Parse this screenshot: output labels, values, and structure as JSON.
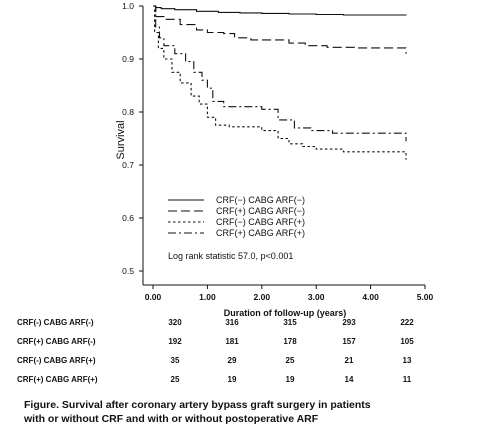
{
  "chart_data": {
    "type": "line",
    "subtype": "kaplan-meier step",
    "ylabel": "Survival",
    "xlabel": "Duration of follow-up (years)",
    "xlim": [
      0,
      5
    ],
    "ylim": [
      0.5,
      1.0
    ],
    "x_ticks": [
      "0.00",
      "1.00",
      "2.00",
      "3.00",
      "4.00",
      "5.00"
    ],
    "y_ticks": [
      "0.5",
      "0.6",
      "0.7",
      "0.8",
      "0.9",
      "1.0"
    ],
    "grid": false,
    "legend_position": "bottom-left",
    "annotation": "Log rank statistic 57.0, p<0.001",
    "series": [
      {
        "name": "CRF(−)  CABG ARF(−)",
        "dash": "",
        "points": [
          [
            0,
            1.0
          ],
          [
            0.05,
            0.997
          ],
          [
            0.15,
            0.995
          ],
          [
            0.4,
            0.993
          ],
          [
            0.8,
            0.99
          ],
          [
            1.2,
            0.988
          ],
          [
            1.6,
            0.987
          ],
          [
            2.0,
            0.986
          ],
          [
            2.5,
            0.985
          ],
          [
            3.0,
            0.984
          ],
          [
            3.5,
            0.983
          ],
          [
            4.0,
            0.983
          ],
          [
            4.65,
            0.982
          ]
        ]
      },
      {
        "name": "CRF(+)  CABG ARF(−)",
        "dash": "9,4",
        "points": [
          [
            0,
            1.0
          ],
          [
            0.05,
            0.98
          ],
          [
            0.2,
            0.975
          ],
          [
            0.5,
            0.965
          ],
          [
            0.8,
            0.955
          ],
          [
            1.0,
            0.95
          ],
          [
            1.3,
            0.948
          ],
          [
            1.5,
            0.94
          ],
          [
            1.8,
            0.936
          ],
          [
            2.1,
            0.936
          ],
          [
            2.5,
            0.93
          ],
          [
            2.8,
            0.925
          ],
          [
            3.2,
            0.922
          ],
          [
            3.7,
            0.921
          ],
          [
            4.65,
            0.921
          ],
          [
            4.65,
            0.91
          ]
        ]
      },
      {
        "name": "CRF(−)  CABG ARF(+)",
        "dash": "2.5,2.5",
        "points": [
          [
            0,
            1.0
          ],
          [
            0.03,
            0.95
          ],
          [
            0.1,
            0.92
          ],
          [
            0.2,
            0.9
          ],
          [
            0.35,
            0.875
          ],
          [
            0.5,
            0.855
          ],
          [
            0.7,
            0.83
          ],
          [
            0.85,
            0.815
          ],
          [
            1.0,
            0.79
          ],
          [
            1.15,
            0.775
          ],
          [
            1.4,
            0.772
          ],
          [
            1.8,
            0.772
          ],
          [
            2.0,
            0.765
          ],
          [
            2.3,
            0.75
          ],
          [
            2.5,
            0.74
          ],
          [
            2.75,
            0.735
          ],
          [
            3.0,
            0.73
          ],
          [
            3.5,
            0.725
          ],
          [
            4.0,
            0.725
          ],
          [
            4.65,
            0.72
          ],
          [
            4.65,
            0.71
          ]
        ]
      },
      {
        "name": "CRF(+)  CABG ARF(+)",
        "dash": "8,3,2,3",
        "points": [
          [
            0,
            1.0
          ],
          [
            0.05,
            0.96
          ],
          [
            0.12,
            0.94
          ],
          [
            0.2,
            0.925
          ],
          [
            0.4,
            0.91
          ],
          [
            0.6,
            0.895
          ],
          [
            0.75,
            0.875
          ],
          [
            0.9,
            0.86
          ],
          [
            1.0,
            0.845
          ],
          [
            1.1,
            0.82
          ],
          [
            1.3,
            0.81
          ],
          [
            1.7,
            0.81
          ],
          [
            2.0,
            0.805
          ],
          [
            2.3,
            0.785
          ],
          [
            2.6,
            0.77
          ],
          [
            2.9,
            0.765
          ],
          [
            3.3,
            0.76
          ],
          [
            4.0,
            0.76
          ],
          [
            4.65,
            0.76
          ],
          [
            4.65,
            0.745
          ]
        ]
      }
    ]
  },
  "risk_table": {
    "rows": [
      {
        "label": "CRF(-)  CABG ARF(-)",
        "values": [
          "320",
          "316",
          "315",
          "293",
          "222"
        ]
      },
      {
        "label": "CRF(+) CABG ARF(-)",
        "values": [
          "192",
          "181",
          "178",
          "157",
          "105"
        ]
      },
      {
        "label": "CRF(-)  CABG ARF(+)",
        "values": [
          "35",
          "29",
          "25",
          "21",
          "13"
        ]
      },
      {
        "label": "CRF(+) CABG ARF(+)",
        "values": [
          "25",
          "19",
          "19",
          "14",
          "11"
        ]
      }
    ]
  },
  "caption": {
    "line1": "Figure. Survival after  coronary artery bypass graft surgery in patients",
    "line2": "with or without CRF and with or without postoperative ARF"
  }
}
